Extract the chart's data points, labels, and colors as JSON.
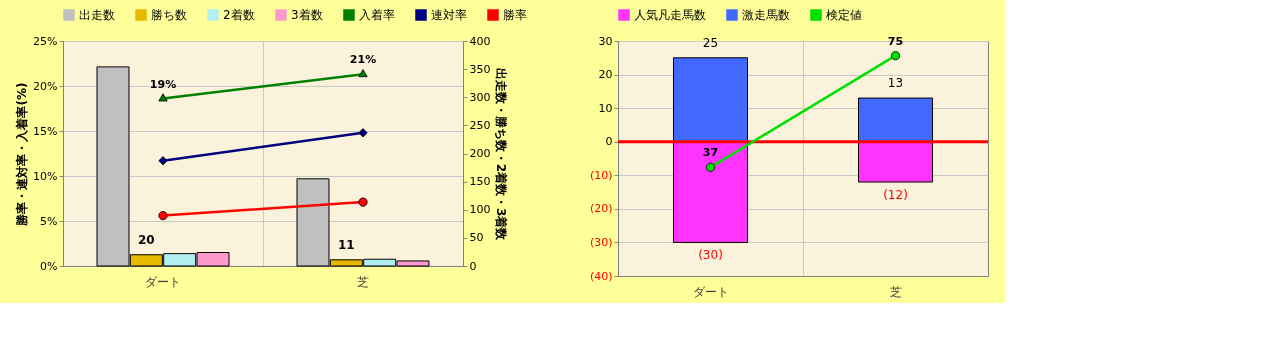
{
  "chart_data": [
    {
      "type": "bar",
      "categories": [
        "ダート",
        "芝"
      ],
      "ylabel": "勝率・連対率・入着率(%)",
      "y2label": "出走数・勝ち数・2着数・3着数",
      "ylim": [
        0,
        25
      ],
      "yticks": [
        {
          "value": 0,
          "label": "0%"
        },
        {
          "value": 5,
          "label": "5%"
        },
        {
          "value": 10,
          "label": "10%"
        },
        {
          "value": 15,
          "label": "15%"
        },
        {
          "value": 20,
          "label": "20%"
        },
        {
          "value": 25,
          "label": "25%"
        }
      ],
      "y2lim": [
        0,
        400
      ],
      "y2ticks": [
        0,
        50,
        100,
        150,
        200,
        250,
        300,
        350,
        400
      ],
      "grid": true,
      "legend": "top",
      "series": [
        {
          "name": "出走数",
          "type": "bar",
          "axis": "y2",
          "color": "#c0c0c0",
          "values": [
            354,
            155
          ]
        },
        {
          "name": "勝ち数",
          "type": "bar",
          "axis": "y2",
          "color": "#e6b800",
          "values": [
            20,
            11
          ],
          "value_labels": [
            "20",
            "11"
          ]
        },
        {
          "name": "2着数",
          "type": "bar",
          "axis": "y2",
          "color": "#b0f0f0",
          "values": [
            22,
            12
          ]
        },
        {
          "name": "3着数",
          "type": "bar",
          "axis": "y2",
          "color": "#ff99cc",
          "values": [
            24,
            9
          ]
        },
        {
          "name": "入着率",
          "type": "line",
          "axis": "y",
          "color": "#008000",
          "marker": "triangle",
          "values": [
            18.6,
            21.3
          ],
          "value_labels": [
            "19%",
            "21%"
          ]
        },
        {
          "name": "連対率",
          "type": "line",
          "axis": "y",
          "color": "#000080",
          "marker": "diamond",
          "values": [
            11.7,
            14.8
          ]
        },
        {
          "name": "勝率",
          "type": "line",
          "axis": "y",
          "color": "#ff0000",
          "marker": "circle",
          "values": [
            5.6,
            7.1
          ]
        }
      ]
    },
    {
      "type": "bar",
      "stacked": true,
      "categories": [
        "ダート",
        "芝"
      ],
      "ylim": [
        -40,
        30
      ],
      "yticks": [
        {
          "value": -40,
          "label": "(40)"
        },
        {
          "value": -30,
          "label": "(30)"
        },
        {
          "value": -20,
          "label": "(20)"
        },
        {
          "value": -10,
          "label": "(10)"
        },
        0,
        10,
        20,
        30
      ],
      "y2lim": [
        0,
        80
      ],
      "grid": true,
      "legend": "top",
      "ref_lines": [
        {
          "axis": "y",
          "value": 0,
          "color": "#ff0000"
        }
      ],
      "series": [
        {
          "name": "人気凡走馬数",
          "type": "bar",
          "axis": "y",
          "color": "#ff33ff",
          "values": [
            -30,
            -12
          ],
          "value_labels": [
            "(30)",
            "(12)"
          ]
        },
        {
          "name": "激走馬数",
          "type": "bar",
          "axis": "y",
          "color": "#4169ff",
          "values": [
            25,
            13
          ],
          "value_labels": [
            "25",
            "13"
          ]
        },
        {
          "name": "検定値",
          "type": "line",
          "axis": "y2",
          "color": "#00e000",
          "marker": "circle",
          "values": [
            37,
            75
          ],
          "value_labels": [
            "37",
            "75"
          ]
        }
      ]
    }
  ]
}
